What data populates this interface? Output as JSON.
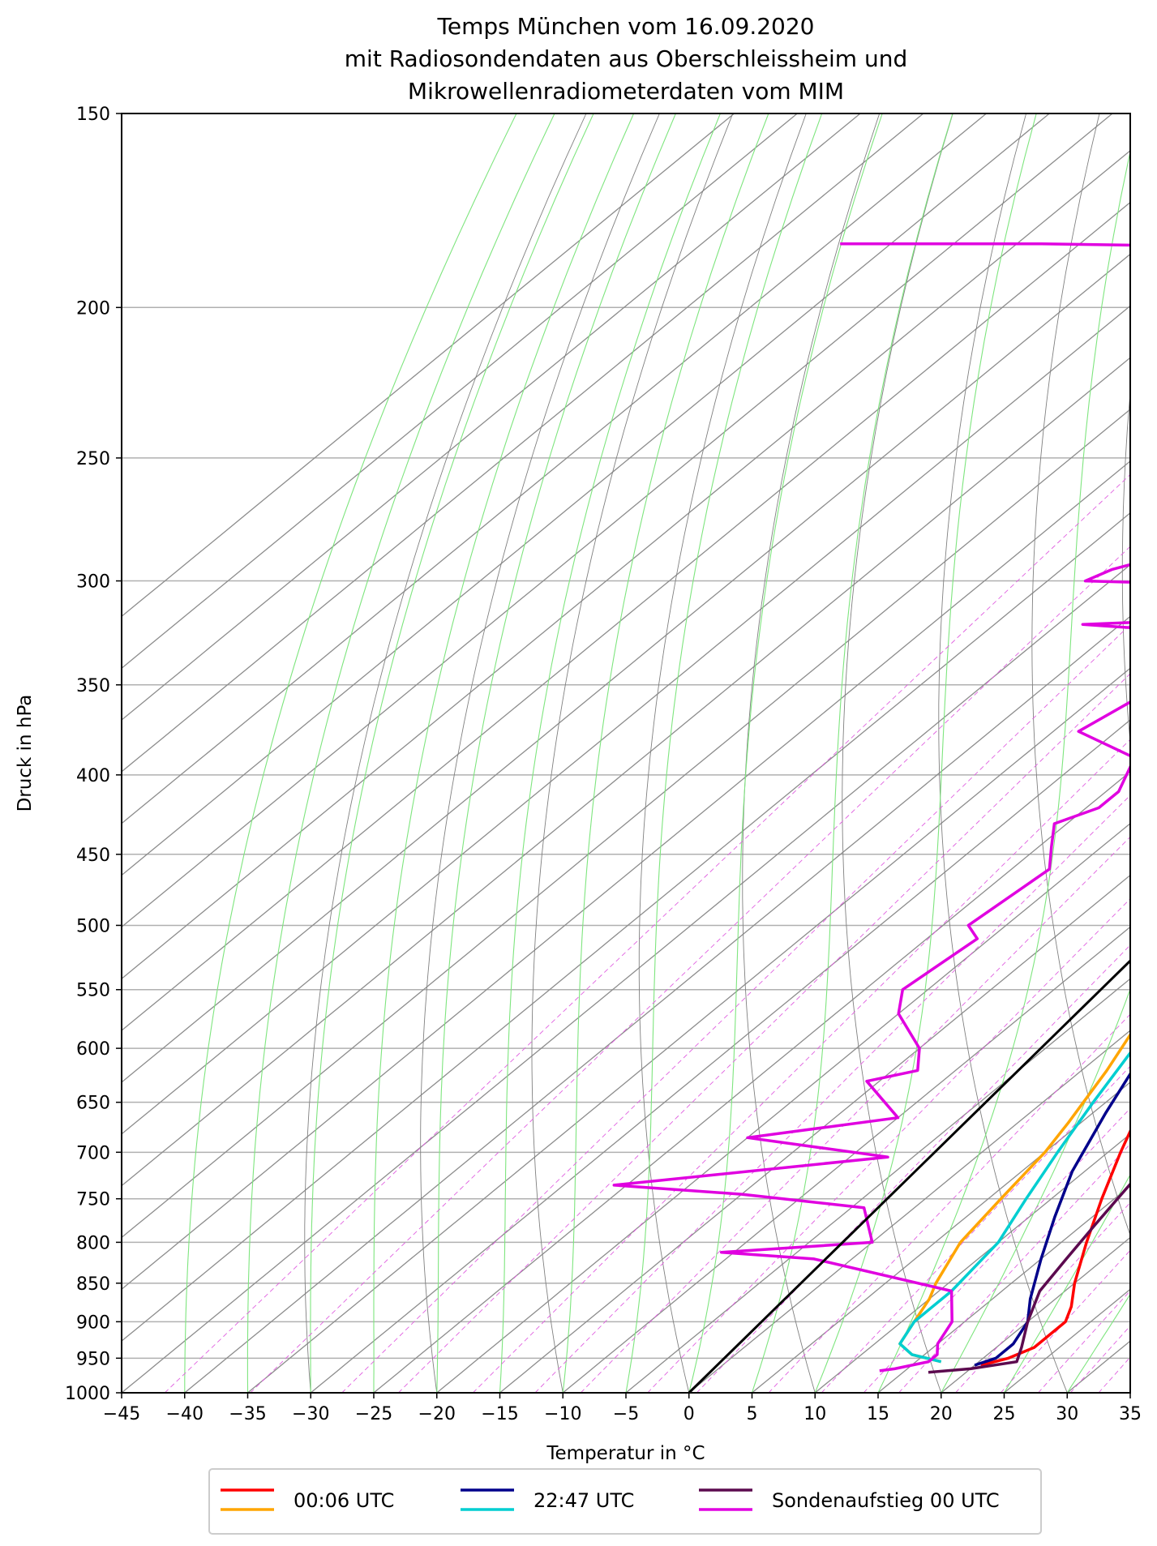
{
  "chart_data": {
    "type": "line",
    "title": [
      "Temps München vom 16.09.2020",
      "mit Radiosondendaten aus Oberschleissheim und",
      "Mikrowellenradiometerdaten vom MIM"
    ],
    "xlabel": "Temperatur in $^\\circ$C",
    "xlabel_display": "Temperatur in °C",
    "ylabel": "Druck in hPa",
    "xlim": [
      -45,
      35
    ],
    "ylim": [
      1000,
      150
    ],
    "yscale": "log",
    "skew_deg_per_decade": 150,
    "x_ticks": [
      "−45",
      "−40",
      "−35",
      "−30",
      "−25",
      "−20",
      "−15",
      "−10",
      "−5",
      "0",
      "5",
      "10",
      "15",
      "20",
      "25",
      "30",
      "35"
    ],
    "y_ticks": [
      "150",
      "200",
      "250",
      "300",
      "350",
      "400",
      "450",
      "500",
      "550",
      "600",
      "650",
      "700",
      "750",
      "800",
      "850",
      "900",
      "950",
      "1000"
    ],
    "grid": true,
    "legend_position": "below",
    "legend": [
      {
        "label": "00:06 UTC",
        "colors": [
          "#ff0000",
          "#ffa500"
        ]
      },
      {
        "label": "22:47 UTC",
        "colors": [
          "#00008b",
          "#00ced1"
        ]
      },
      {
        "label": "Sondenaufstieg 00 UTC",
        "colors": [
          "#5c0a4f",
          "#e000e0"
        ]
      }
    ],
    "series": [
      {
        "name": "00:06 UTC",
        "kind": "temperature",
        "color": "#ff0000",
        "points": [
          [
            20.5,
            960
          ],
          [
            22,
            950
          ],
          [
            23,
            935
          ],
          [
            23,
            900
          ],
          [
            22,
            880
          ],
          [
            20,
            850
          ],
          [
            17,
            800
          ],
          [
            14,
            750
          ],
          [
            11,
            700
          ],
          [
            8,
            650
          ],
          [
            5,
            600
          ],
          [
            2,
            550
          ],
          [
            -1,
            500
          ],
          [
            -4,
            450
          ],
          [
            -7,
            400
          ],
          [
            -10,
            350
          ],
          [
            -13,
            300
          ],
          [
            -15,
            255
          ]
        ]
      },
      {
        "name": "00:06 UTC",
        "kind": "dewpoint",
        "color": "#ffa500",
        "points": [
          [
            17,
            955
          ],
          [
            14,
            945
          ],
          [
            12,
            930
          ],
          [
            11,
            900
          ],
          [
            10,
            870
          ],
          [
            9,
            850
          ],
          [
            7,
            800
          ],
          [
            6,
            750
          ],
          [
            5,
            700
          ],
          [
            4,
            670
          ],
          [
            2,
            620
          ],
          [
            0,
            580
          ],
          [
            -2,
            530
          ],
          [
            -6,
            480
          ],
          [
            -10,
            430
          ],
          [
            -13,
            380
          ],
          [
            -16,
            330
          ],
          [
            -19,
            290
          ],
          [
            -20,
            255
          ]
        ]
      },
      {
        "name": "22:47 UTC",
        "kind": "temperature",
        "color": "#00008b",
        "points": [
          [
            20,
            960
          ],
          [
            21,
            950
          ],
          [
            21,
            930
          ],
          [
            20,
            900
          ],
          [
            18,
            870
          ],
          [
            15,
            820
          ],
          [
            12,
            770
          ],
          [
            9,
            720
          ],
          [
            6,
            660
          ],
          [
            3,
            600
          ],
          [
            0,
            550
          ],
          [
            -3,
            490
          ],
          [
            -7,
            430
          ],
          [
            -10,
            380
          ],
          [
            -13,
            330
          ],
          [
            -16,
            290
          ],
          [
            -18,
            250
          ]
        ]
      },
      {
        "name": "22:47 UTC",
        "kind": "dewpoint",
        "color": "#00ced1",
        "points": [
          [
            17,
            955
          ],
          [
            14,
            945
          ],
          [
            12,
            930
          ],
          [
            11,
            900
          ],
          [
            11,
            860
          ],
          [
            10,
            800
          ],
          [
            8,
            750
          ],
          [
            6,
            700
          ],
          [
            4,
            650
          ],
          [
            2,
            600
          ],
          [
            0,
            550
          ],
          [
            -3,
            500
          ],
          [
            -6,
            450
          ],
          [
            -10,
            400
          ],
          [
            -14,
            350
          ],
          [
            -17,
            300
          ],
          [
            -20,
            260
          ],
          [
            -21,
            250
          ]
        ]
      },
      {
        "name": "Sondenaufstieg 00 UTC",
        "kind": "temperature",
        "color": "#5c0a4f",
        "points": [
          [
            17,
            970
          ],
          [
            20,
            965
          ],
          [
            23,
            955
          ],
          [
            22,
            935
          ],
          [
            20,
            900
          ],
          [
            18,
            860
          ],
          [
            17,
            820
          ],
          [
            16,
            780
          ],
          [
            15,
            740
          ],
          [
            14,
            700
          ],
          [
            13,
            680
          ],
          [
            12,
            660
          ],
          [
            10,
            620
          ],
          [
            7,
            575
          ],
          [
            5,
            550
          ],
          [
            3,
            520
          ],
          [
            1,
            480
          ],
          [
            -2,
            450
          ],
          [
            -4,
            430
          ],
          [
            -6,
            390
          ],
          [
            -8,
            370
          ],
          [
            -11,
            340
          ],
          [
            -12,
            330
          ],
          [
            -13,
            315
          ],
          [
            -14,
            305
          ],
          [
            -13,
            300
          ],
          [
            -14,
            290
          ],
          [
            -16,
            275
          ],
          [
            -17,
            262
          ],
          [
            -18,
            250
          ],
          [
            -19,
            230
          ],
          [
            -20,
            205
          ],
          [
            -19,
            200
          ],
          [
            -17,
            193
          ],
          [
            -16,
            188
          ],
          [
            -13,
            175
          ],
          [
            -10,
            160
          ],
          [
            -9,
            155
          ],
          [
            -7,
            150
          ]
        ]
      },
      {
        "name": "Sondenaufstieg 00 UTC",
        "kind": "dewpoint",
        "color": "#e000e0",
        "points": [
          [
            13,
            968
          ],
          [
            14,
            965
          ],
          [
            16,
            955
          ],
          [
            16,
            945
          ],
          [
            15,
            930
          ],
          [
            14,
            900
          ],
          [
            11,
            860
          ],
          [
            -3,
            820
          ],
          [
            -11,
            812
          ],
          [
            0,
            800
          ],
          [
            -4,
            760
          ],
          [
            -15,
            745
          ],
          [
            -26,
            735
          ],
          [
            -7,
            705
          ],
          [
            -20,
            685
          ],
          [
            -10,
            665
          ],
          [
            -16,
            630
          ],
          [
            -13,
            620
          ],
          [
            -15,
            600
          ],
          [
            -20,
            570
          ],
          [
            -22,
            550
          ],
          [
            -21,
            510
          ],
          [
            -23,
            500
          ],
          [
            -22,
            460
          ],
          [
            -24,
            445
          ],
          [
            -26,
            430
          ],
          [
            -24,
            420
          ],
          [
            -24,
            410
          ],
          [
            -26,
            390
          ],
          [
            -33,
            375
          ],
          [
            -31,
            350
          ],
          [
            -30,
            330
          ],
          [
            -30,
            325
          ],
          [
            -43,
            320
          ],
          [
            -35,
            318
          ],
          [
            -34,
            302
          ],
          [
            -47,
            300
          ],
          [
            -46,
            295
          ],
          [
            -39,
            280
          ],
          [
            -31,
            270
          ],
          [
            -33,
            262
          ],
          [
            -36,
            252
          ],
          [
            -38,
            235
          ],
          [
            -42,
            220
          ],
          [
            -51,
            205
          ],
          [
            -47,
            200
          ],
          [
            -57,
            193
          ],
          [
            -60,
            186
          ],
          [
            -62,
            183
          ],
          [
            -83,
            182
          ],
          [
            -99,
            182
          ]
        ]
      },
      {
        "name": "",
        "kind": "reference",
        "color": "#000000",
        "points": [
          [
            0,
            1000
          ],
          [
            -15,
            240
          ]
        ]
      }
    ]
  }
}
